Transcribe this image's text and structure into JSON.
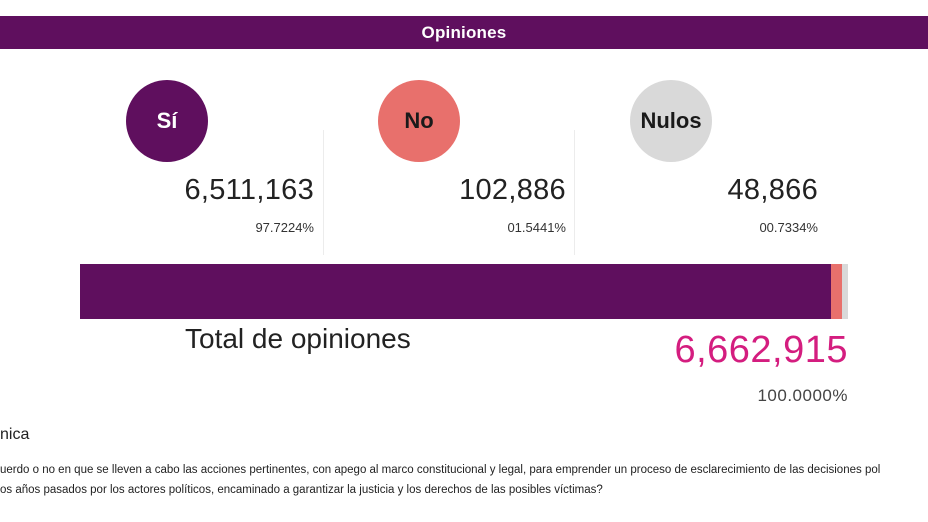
{
  "header": {
    "title": "Opiniones"
  },
  "options": [
    {
      "label": "Sí",
      "count": "6,511,163",
      "percent": "97.7224%",
      "share": 0.977224,
      "color": "#5f0f5e",
      "text_color": "#ffffff"
    },
    {
      "label": "No",
      "count": "102,886",
      "percent": "01.5441%",
      "share": 0.015441,
      "color": "#e8706c",
      "text_color": "#1a1a1a"
    },
    {
      "label": "Nulos",
      "count": "48,866",
      "percent": "00.7334%",
      "share": 0.007334,
      "color": "#d9d9d9",
      "text_color": "#1a1a1a"
    }
  ],
  "total": {
    "label": "Total de opiniones",
    "value": "6,662,915",
    "percent": "100.0000%",
    "color": "#d41d7f"
  },
  "question": {
    "section_title": "nica",
    "line1": "uerdo o no en que se lleven a cabo las acciones pertinentes, con apego al marco constitucional y legal, para emprender un proceso de esclarecimiento de las decisiones pol",
    "line2": "os años pasados por los actores políticos, encaminado a garantizar la justicia y los derechos de las posibles víctimas?"
  }
}
